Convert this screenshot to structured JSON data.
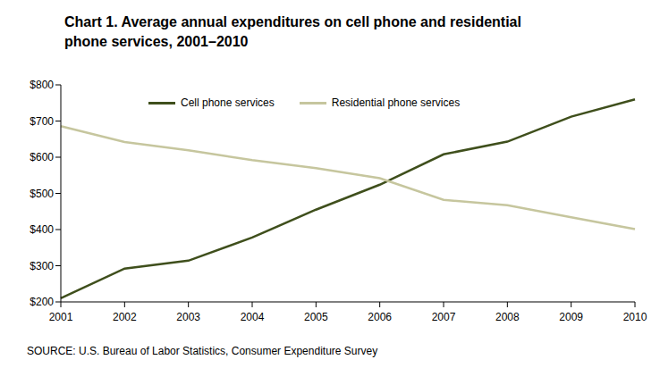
{
  "chart_data": {
    "type": "line",
    "title": "Chart 1. Average annual expenditures on cell phone and residential phone services, 2001–2010",
    "source": "SOURCE: U.S. Bureau of Labor Statistics, Consumer Expenditure Survey",
    "categories": [
      "2001",
      "2002",
      "2003",
      "2004",
      "2005",
      "2006",
      "2007",
      "2008",
      "2009",
      "2010"
    ],
    "series": [
      {
        "name": "Cell phone services",
        "color": "#3f4f1c",
        "values": [
          210,
          292,
          314,
          378,
          455,
          524,
          608,
          643,
          712,
          760
        ]
      },
      {
        "name": "Residential phone services",
        "color": "#c6c69e",
        "values": [
          686,
          642,
          619,
          592,
          570,
          542,
          482,
          467,
          434,
          401
        ]
      }
    ],
    "ylim": [
      200,
      800
    ],
    "yticks": [
      {
        "value": 200,
        "label": "$200"
      },
      {
        "value": 300,
        "label": "$300"
      },
      {
        "value": 400,
        "label": "$400"
      },
      {
        "value": 500,
        "label": "$500"
      },
      {
        "value": 600,
        "label": "$600"
      },
      {
        "value": 700,
        "label": "$700"
      },
      {
        "value": 800,
        "label": "$800"
      }
    ],
    "grid": false,
    "legend": "top"
  }
}
